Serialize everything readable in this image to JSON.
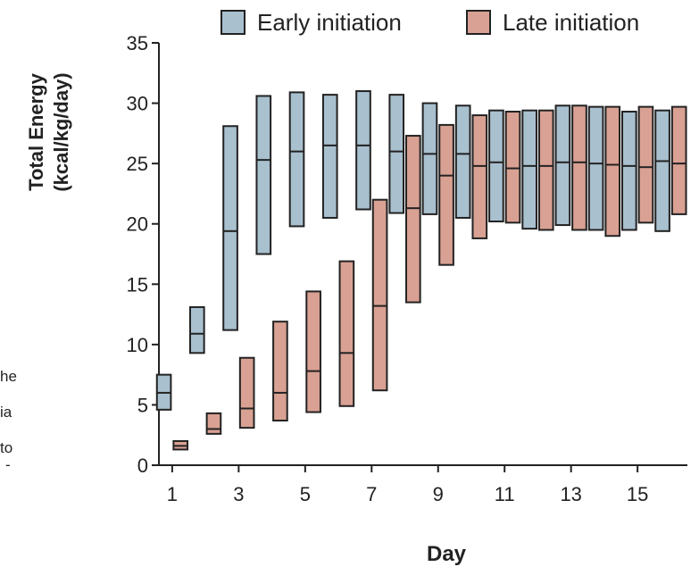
{
  "side_fragments": [
    "he",
    "ia",
    "to",
    "-"
  ],
  "chart_data": {
    "type": "box",
    "title": "",
    "xlabel": "Day",
    "ylabel_line1": "Total Energy",
    "ylabel_line2": "(kcal/kg/day)",
    "xlim": [
      0.6,
      16.5
    ],
    "ylim": [
      0,
      35
    ],
    "y_ticks": [
      "0",
      "5",
      "10",
      "15",
      "20",
      "25",
      "30",
      "35"
    ],
    "x_ticks": [
      "1",
      "3",
      "5",
      "7",
      "9",
      "11",
      "13",
      "15"
    ],
    "legend_position": "top",
    "colors": {
      "early": "#a9c0cf",
      "late": "#d9a193",
      "outline": "#222222"
    },
    "series": [
      {
        "name": "Early initiation",
        "color_key": "early",
        "offset": -0.25,
        "boxes": [
          {
            "day": 1,
            "low": 4.6,
            "median": 6.0,
            "high": 7.5
          },
          {
            "day": 2,
            "low": 9.3,
            "median": 10.9,
            "high": 13.1
          },
          {
            "day": 3,
            "low": 11.2,
            "median": 19.4,
            "high": 28.1
          },
          {
            "day": 4,
            "low": 17.5,
            "median": 25.3,
            "high": 30.6
          },
          {
            "day": 5,
            "low": 19.8,
            "median": 26.0,
            "high": 30.9
          },
          {
            "day": 6,
            "low": 20.5,
            "median": 26.5,
            "high": 30.7
          },
          {
            "day": 7,
            "low": 21.2,
            "median": 26.5,
            "high": 31.0
          },
          {
            "day": 8,
            "low": 20.9,
            "median": 26.0,
            "high": 30.7
          },
          {
            "day": 9,
            "low": 20.8,
            "median": 25.8,
            "high": 30.0
          },
          {
            "day": 10,
            "low": 20.5,
            "median": 25.8,
            "high": 29.8
          },
          {
            "day": 11,
            "low": 20.2,
            "median": 25.1,
            "high": 29.4
          },
          {
            "day": 12,
            "low": 19.6,
            "median": 24.8,
            "high": 29.4
          },
          {
            "day": 13,
            "low": 19.9,
            "median": 25.1,
            "high": 29.8
          },
          {
            "day": 14,
            "low": 19.5,
            "median": 25.0,
            "high": 29.7
          },
          {
            "day": 15,
            "low": 19.5,
            "median": 24.8,
            "high": 29.3
          },
          {
            "day": 16,
            "low": 19.4,
            "median": 25.2,
            "high": 29.4
          }
        ]
      },
      {
        "name": "Late initiation",
        "color_key": "late",
        "offset": 0.25,
        "boxes": [
          {
            "day": 1,
            "low": 1.3,
            "median": 1.6,
            "high": 2.0
          },
          {
            "day": 2,
            "low": 2.6,
            "median": 3.0,
            "high": 4.3
          },
          {
            "day": 3,
            "low": 3.1,
            "median": 4.7,
            "high": 8.9
          },
          {
            "day": 4,
            "low": 3.7,
            "median": 6.0,
            "high": 11.9
          },
          {
            "day": 5,
            "low": 4.4,
            "median": 7.8,
            "high": 14.4
          },
          {
            "day": 6,
            "low": 4.9,
            "median": 9.3,
            "high": 16.9
          },
          {
            "day": 7,
            "low": 6.2,
            "median": 13.2,
            "high": 22.0
          },
          {
            "day": 8,
            "low": 13.5,
            "median": 21.3,
            "high": 27.3
          },
          {
            "day": 9,
            "low": 16.6,
            "median": 24.0,
            "high": 28.2
          },
          {
            "day": 10,
            "low": 18.8,
            "median": 24.8,
            "high": 29.0
          },
          {
            "day": 11,
            "low": 20.1,
            "median": 24.6,
            "high": 29.3
          },
          {
            "day": 12,
            "low": 19.5,
            "median": 24.8,
            "high": 29.4
          },
          {
            "day": 13,
            "low": 19.5,
            "median": 25.1,
            "high": 29.8
          },
          {
            "day": 14,
            "low": 19.0,
            "median": 24.9,
            "high": 29.7
          },
          {
            "day": 15,
            "low": 20.1,
            "median": 24.7,
            "high": 29.7
          },
          {
            "day": 16,
            "low": 20.8,
            "median": 25.0,
            "high": 29.7
          }
        ]
      }
    ]
  }
}
